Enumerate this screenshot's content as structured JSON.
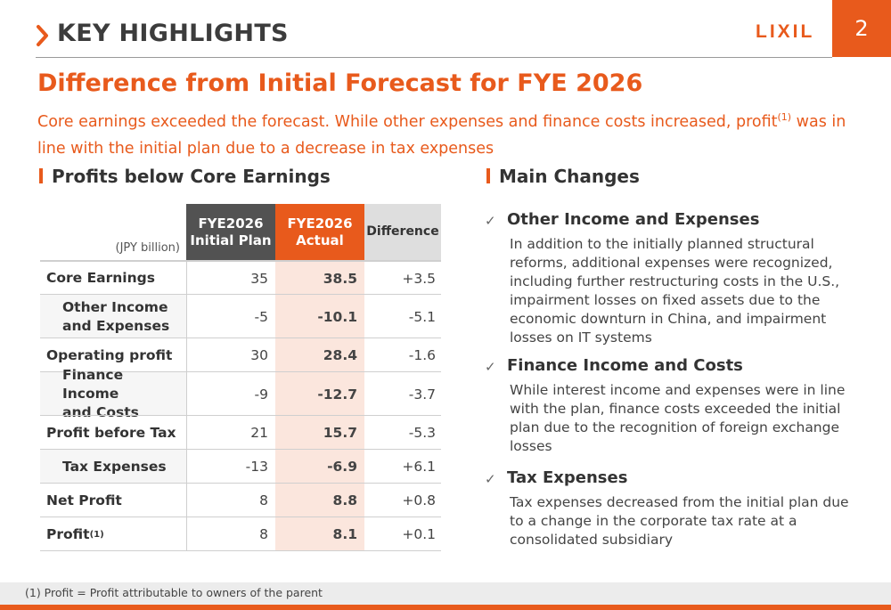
{
  "header": {
    "title": "KEY HIGHLIGHTS",
    "logo": "LIXIL",
    "page_number": "2",
    "accent_color": "#e85a1c"
  },
  "main": {
    "title": "Difference from Initial Forecast for FYE 2026",
    "subtitle_part1": "Core earnings exceeded the forecast. While other expenses and finance costs increased, profit",
    "subtitle_sup": "(1)",
    "subtitle_part2": " was in line with the initial plan due to a decrease in tax expenses"
  },
  "table_section": {
    "heading": "Profits below Core Earnings",
    "unit": "(JPY billion)",
    "col_plan_line1": "FYE2026",
    "col_plan_line2": "Initial Plan",
    "col_actual_line1": "FYE2026",
    "col_actual_line2": "Actual",
    "col_diff": "Difference",
    "rows": [
      {
        "label": "Core Earnings",
        "plan": "35",
        "actual": "38.5",
        "diff": "+3.5"
      },
      {
        "label_line1": "Other Income",
        "label_line2": "and Expenses",
        "plan": "-5",
        "actual": "-10.1",
        "diff": "-5.1"
      },
      {
        "label": "Operating profit",
        "plan": "30",
        "actual": "28.4",
        "diff": "-1.6"
      },
      {
        "label_line1": "Finance Income",
        "label_line2": "and Costs",
        "plan": "-9",
        "actual": "-12.7",
        "diff": "-3.7"
      },
      {
        "label": "Profit before Tax",
        "plan": "21",
        "actual": "15.7",
        "diff": "-5.3"
      },
      {
        "label": "Tax Expenses",
        "plan": "-13",
        "actual": "-6.9",
        "diff": "+6.1"
      },
      {
        "label": "Net Profit",
        "plan": "8",
        "actual": "8.8",
        "diff": "+0.8"
      },
      {
        "label": "Profit",
        "label_sup": "(1)",
        "plan": "8",
        "actual": "8.1",
        "diff": "+0.1"
      }
    ]
  },
  "changes_section": {
    "heading": "Main Changes",
    "check_glyph": "✓",
    "items": [
      {
        "title": "Other Income and Expenses",
        "body": "In addition to the initially planned structural reforms, additional expenses were recognized, including further restructuring costs in the U.S., impairment losses on fixed assets due to the economic downturn in China, and impairment losses on IT systems"
      },
      {
        "title": "Finance Income and Costs",
        "body": "While interest income and expenses were in line with the plan, finance costs exceeded the initial plan due to the recognition of foreign exchange losses"
      },
      {
        "title": "Tax Expenses",
        "body": "Tax expenses decreased from the initial plan due to a change in the corporate tax rate at a consolidated subsidiary"
      }
    ]
  },
  "footnote": "(1)  Profit = Profit attributable to owners of the parent"
}
